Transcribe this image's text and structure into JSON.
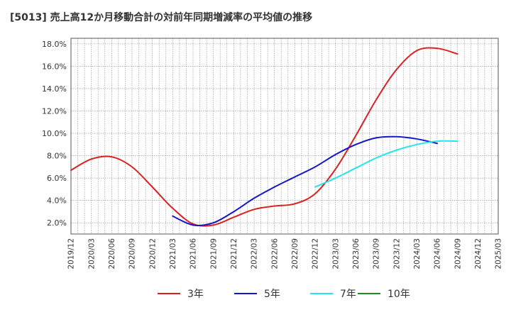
{
  "title": "[5013]  売上高12か月移動合計の対前年同期増減率の平均値の推移",
  "chart_data": {
    "type": "line",
    "title": "[5013]  売上高12か月移動合計の対前年同期増減率の平均値の推移",
    "xlabel": "",
    "ylabel": "",
    "ylim": [
      1.0,
      18.5
    ],
    "yticks": [
      2.0,
      4.0,
      6.0,
      8.0,
      10.0,
      12.0,
      14.0,
      16.0,
      18.0
    ],
    "ytick_labels": [
      "2.0%",
      "4.0%",
      "6.0%",
      "8.0%",
      "10.0%",
      "12.0%",
      "14.0%",
      "16.0%",
      "18.0%"
    ],
    "x_categories": [
      "2019/12",
      "2020/03",
      "2020/06",
      "2020/09",
      "2020/12",
      "2021/03",
      "2021/06",
      "2021/09",
      "2021/12",
      "2022/03",
      "2022/06",
      "2022/09",
      "2022/12",
      "2023/03",
      "2023/06",
      "2023/09",
      "2023/12",
      "2024/03",
      "2024/06",
      "2024/09",
      "2024/12",
      "2025/03"
    ],
    "grid": true,
    "legend_position": "bottom",
    "series": [
      {
        "name": "3年",
        "color": "#dd1f1f",
        "start_index": 0,
        "values": [
          6.7,
          7.7,
          7.9,
          7.0,
          5.2,
          3.3,
          1.9,
          1.8,
          2.5,
          3.2,
          3.5,
          3.7,
          4.6,
          6.8,
          9.8,
          13.0,
          15.7,
          17.4,
          17.6,
          17.1
        ]
      },
      {
        "name": "5年",
        "color": "#1515cc",
        "start_index": 5,
        "values": [
          2.6,
          1.8,
          2.0,
          3.0,
          4.2,
          5.2,
          6.1,
          7.0,
          8.1,
          9.0,
          9.6,
          9.7,
          9.5,
          9.1
        ]
      },
      {
        "name": "7年",
        "color": "#22e5ee",
        "start_index": 12,
        "values": [
          5.2,
          6.0,
          6.9,
          7.8,
          8.5,
          9.0,
          9.3,
          9.3
        ]
      },
      {
        "name": "10年",
        "color": "#1f8c1f",
        "start_index": 0,
        "values": []
      }
    ]
  }
}
